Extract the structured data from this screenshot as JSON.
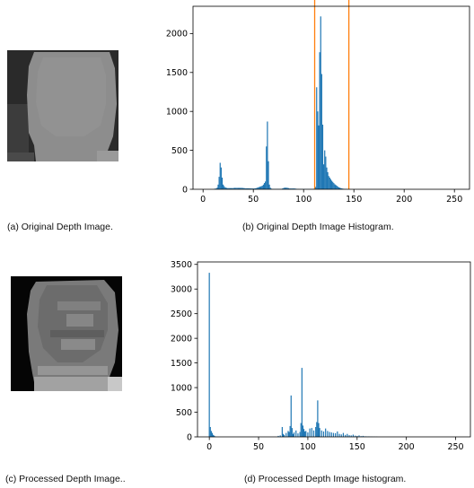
{
  "captions": {
    "a": "(a) Original Depth Image.",
    "b": "(b) Original Depth Image Histogram.",
    "c": "(c) Processed Depth Image..",
    "d": "(d) Processed Depth Image histogram."
  },
  "colors": {
    "bar": "#1f77b4",
    "threshold_line": "#ff7f0e"
  },
  "chart_data": [
    {
      "type": "bar",
      "title": "",
      "xlabel": "",
      "ylabel": "",
      "xlim": [
        -10,
        265
      ],
      "ylim": [
        0,
        2350
      ],
      "xticks": [
        0,
        50,
        100,
        150,
        200,
        250
      ],
      "yticks": [
        0,
        500,
        1000,
        1500,
        2000
      ],
      "threshold_lines_x": [
        111,
        145
      ],
      "x": [
        10,
        11,
        12,
        13,
        14,
        15,
        16,
        17,
        18,
        19,
        20,
        21,
        22,
        23,
        24,
        25,
        26,
        27,
        28,
        29,
        30,
        31,
        32,
        33,
        34,
        35,
        36,
        37,
        38,
        39,
        40,
        41,
        42,
        43,
        44,
        45,
        46,
        47,
        48,
        49,
        50,
        51,
        52,
        53,
        54,
        55,
        56,
        57,
        58,
        59,
        60,
        61,
        62,
        63,
        64,
        65,
        66,
        67,
        68,
        69,
        70,
        71,
        72,
        73,
        74,
        75,
        76,
        77,
        78,
        79,
        80,
        81,
        82,
        83,
        84,
        85,
        86,
        87,
        88,
        89,
        90,
        91,
        92,
        93,
        94,
        95,
        96,
        97,
        98,
        99,
        100,
        101,
        102,
        103,
        104,
        105,
        106,
        107,
        108,
        109,
        110,
        111,
        112,
        113,
        114,
        115,
        116,
        117,
        118,
        119,
        120,
        121,
        122,
        123,
        124,
        125,
        126,
        127,
        128,
        129,
        130,
        131,
        132,
        133,
        134,
        135,
        136,
        137,
        138,
        139,
        140,
        141,
        142,
        143,
        144
      ],
      "values": [
        0,
        5,
        8,
        10,
        20,
        60,
        160,
        340,
        280,
        150,
        60,
        40,
        25,
        20,
        15,
        15,
        15,
        15,
        15,
        15,
        15,
        18,
        18,
        18,
        18,
        18,
        18,
        18,
        18,
        18,
        15,
        15,
        12,
        12,
        12,
        12,
        12,
        12,
        10,
        10,
        10,
        10,
        12,
        15,
        20,
        25,
        30,
        35,
        40,
        45,
        60,
        80,
        100,
        550,
        870,
        360,
        60,
        20,
        8,
        5,
        4,
        4,
        4,
        4,
        5,
        5,
        5,
        5,
        5,
        10,
        15,
        20,
        20,
        20,
        18,
        15,
        10,
        10,
        10,
        10,
        10,
        10,
        8,
        6,
        4,
        4,
        3,
        3,
        3,
        3,
        3,
        3,
        3,
        3,
        3,
        3,
        3,
        3,
        3,
        3,
        5,
        10,
        30,
        1310,
        1000,
        820,
        1760,
        2220,
        1480,
        830,
        320,
        500,
        420,
        280,
        220,
        170,
        150,
        130,
        110,
        95,
        80,
        65,
        55,
        45,
        35,
        25,
        20,
        15,
        12,
        8,
        6,
        5,
        4,
        3,
        2
      ]
    },
    {
      "type": "bar",
      "title": "",
      "xlabel": "",
      "ylabel": "",
      "xlim": [
        -12,
        265
      ],
      "ylim": [
        0,
        3550
      ],
      "xticks": [
        0,
        50,
        100,
        150,
        200,
        250
      ],
      "yticks": [
        0,
        500,
        1000,
        1500,
        2000,
        2500,
        3000,
        3500
      ],
      "x": [
        0,
        1,
        2,
        3,
        4,
        5,
        6,
        70,
        72,
        74,
        75,
        76,
        78,
        80,
        81,
        82,
        83,
        84,
        85,
        86,
        88,
        90,
        92,
        93,
        94,
        95,
        96,
        97,
        98,
        100,
        102,
        104,
        106,
        108,
        109,
        110,
        111,
        112,
        114,
        116,
        118,
        120,
        122,
        124,
        126,
        128,
        130,
        132,
        134,
        136,
        138,
        140,
        142,
        144,
        146,
        148,
        150,
        152,
        154,
        156,
        158,
        160,
        162,
        164,
        166,
        168,
        170
      ],
      "values": [
        3330,
        200,
        120,
        80,
        40,
        25,
        10,
        20,
        30,
        200,
        60,
        40,
        80,
        120,
        100,
        220,
        840,
        180,
        60,
        90,
        130,
        70,
        100,
        280,
        1400,
        230,
        160,
        110,
        120,
        90,
        170,
        180,
        130,
        200,
        300,
        740,
        280,
        180,
        130,
        110,
        170,
        120,
        100,
        90,
        80,
        75,
        110,
        60,
        50,
        80,
        40,
        60,
        35,
        30,
        45,
        25,
        20,
        30,
        15,
        20,
        12,
        10,
        10,
        8,
        6,
        5,
        4
      ]
    }
  ]
}
